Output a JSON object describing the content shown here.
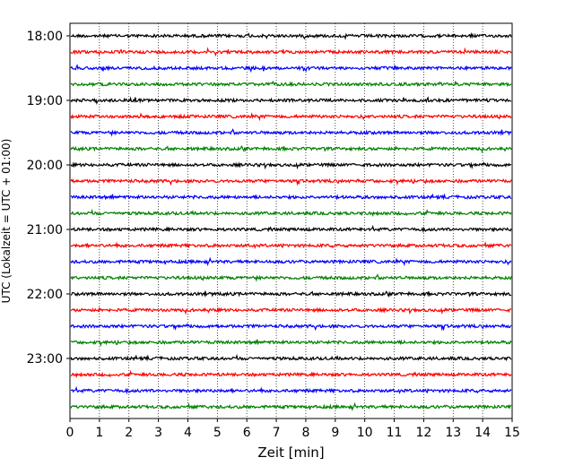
{
  "chart_data": {
    "type": "line",
    "title": "",
    "xlabel": "Zeit  [min]",
    "ylabel": "UTC (Lokalzeit = UTC + 01:00)",
    "xlim": [
      0,
      15
    ],
    "x_ticks": [
      "0",
      "1",
      "2",
      "3",
      "4",
      "5",
      "6",
      "7",
      "8",
      "9",
      "10",
      "11",
      "12",
      "13",
      "14",
      "15"
    ],
    "y_tick_labels": [
      "18:00",
      "19:00",
      "20:00",
      "21:00",
      "22:00",
      "23:00"
    ],
    "grid": "vertical dotted",
    "colors": [
      "#000000",
      "#ff0000",
      "#0000ff",
      "#008000"
    ],
    "traces": [
      {
        "start": "18:00",
        "color": "#000000"
      },
      {
        "start": "18:15",
        "color": "#ff0000"
      },
      {
        "start": "18:30",
        "color": "#0000ff"
      },
      {
        "start": "18:45",
        "color": "#008000"
      },
      {
        "start": "19:00",
        "color": "#000000"
      },
      {
        "start": "19:15",
        "color": "#ff0000"
      },
      {
        "start": "19:30",
        "color": "#0000ff"
      },
      {
        "start": "19:45",
        "color": "#008000"
      },
      {
        "start": "20:00",
        "color": "#000000"
      },
      {
        "start": "20:15",
        "color": "#ff0000"
      },
      {
        "start": "20:30",
        "color": "#0000ff"
      },
      {
        "start": "20:45",
        "color": "#008000"
      },
      {
        "start": "21:00",
        "color": "#000000"
      },
      {
        "start": "21:15",
        "color": "#ff0000"
      },
      {
        "start": "21:30",
        "color": "#0000ff"
      },
      {
        "start": "21:45",
        "color": "#008000"
      },
      {
        "start": "22:00",
        "color": "#000000"
      },
      {
        "start": "22:15",
        "color": "#ff0000"
      },
      {
        "start": "22:30",
        "color": "#0000ff"
      },
      {
        "start": "22:45",
        "color": "#008000"
      },
      {
        "start": "23:00",
        "color": "#000000"
      },
      {
        "start": "23:15",
        "color": "#ff0000"
      },
      {
        "start": "23:30",
        "color": "#0000ff"
      },
      {
        "start": "23:45",
        "color": "#008000"
      }
    ]
  }
}
